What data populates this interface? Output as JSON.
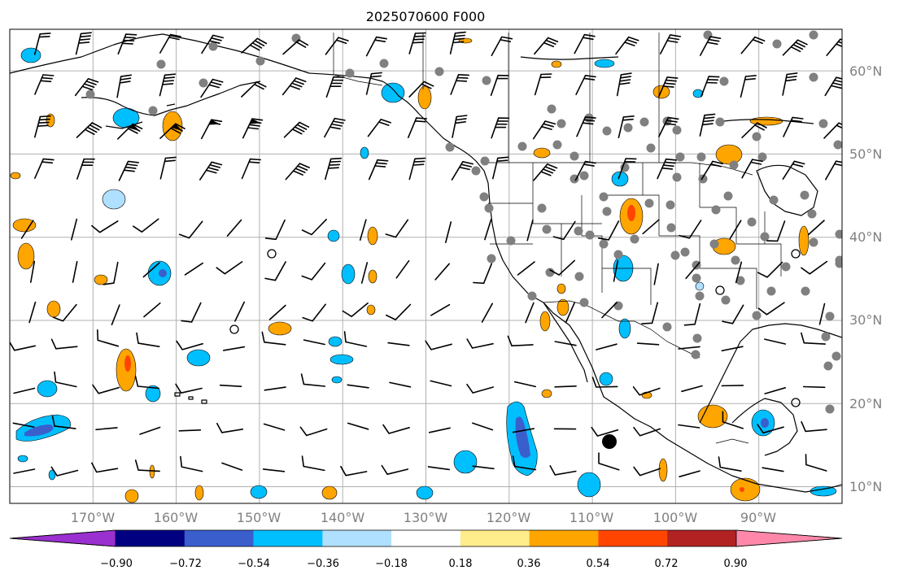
{
  "title": "2025070600 F000",
  "map": {
    "lat_labels": [
      "60°N",
      "50°N",
      "40°N",
      "30°N",
      "20°N",
      "10°N"
    ],
    "lon_labels": [
      "170°W",
      "160°W",
      "150°W",
      "140°W",
      "130°W",
      "120°W",
      "110°W",
      "100°W",
      "90°W"
    ],
    "extent": {
      "lon_min": -180,
      "lon_max": -80,
      "lat_min": 8,
      "lat_max": 65
    }
  },
  "colorbar": {
    "tick_labels": [
      "−0.90",
      "−0.72",
      "−0.54",
      "−0.36",
      "−0.18",
      "0.18",
      "0.36",
      "0.54",
      "0.72",
      "0.90"
    ],
    "levels": [
      -0.9,
      -0.72,
      -0.54,
      -0.36,
      -0.18,
      0.18,
      0.36,
      0.54,
      0.72,
      0.9
    ],
    "colors": [
      "#9b30d0",
      "#000080",
      "#3a5fcd",
      "#00bfff",
      "#b0e0ff",
      "#ffffff",
      "#ffec8b",
      "#ffa500",
      "#ff4500",
      "#b22222",
      "#ff88aa"
    ]
  },
  "colors": {
    "station_dot": "#808080",
    "barb": "#000000",
    "grid": "#b0b0b0",
    "coast": "#000000"
  }
}
